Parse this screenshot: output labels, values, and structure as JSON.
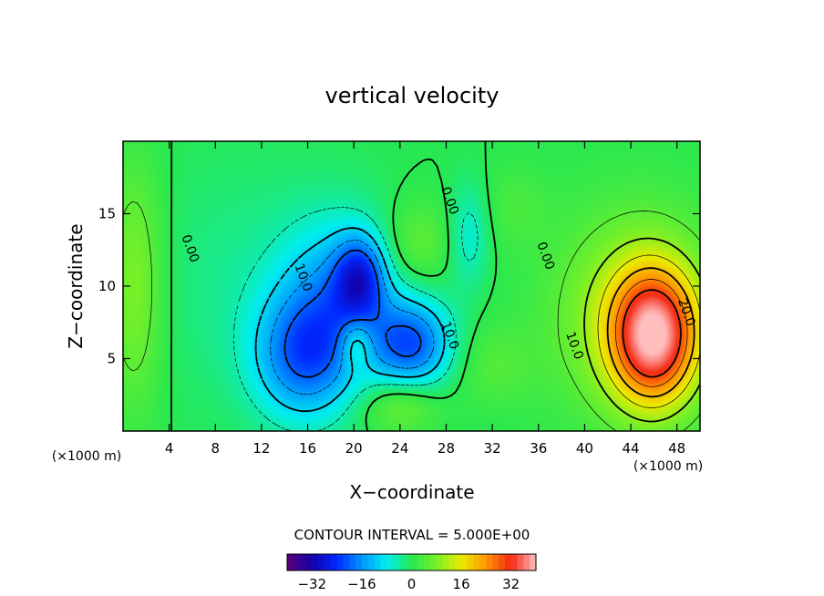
{
  "chart_data": {
    "type": "heatmap",
    "title": "vertical velocity",
    "xlabel": "X−coordinate",
    "ylabel": "Z−coordinate",
    "x_unit_left": "(×1000 m)",
    "x_unit_right": "(×1000 m)",
    "xlim": [
      0,
      50
    ],
    "ylim": [
      0,
      20
    ],
    "xticks": [
      4,
      8,
      12,
      16,
      20,
      24,
      28,
      32,
      36,
      40,
      44,
      48
    ],
    "xtick_labels": [
      "4",
      "8",
      "12",
      "16",
      "20",
      "24",
      "28",
      "32",
      "36",
      "40",
      "44",
      "48"
    ],
    "yticks": [
      5,
      10,
      15
    ],
    "ytick_labels": [
      "5",
      "10",
      "15"
    ],
    "contour_interval_text": "CONTOUR INTERVAL = 5.000E+00",
    "contour_labels": [
      {
        "text": "0.00",
        "x": 5.5,
        "y": 12.5
      },
      {
        "text": "10.0",
        "x": 15.3,
        "y": 10.5
      },
      {
        "text": "0.00",
        "x": 28.0,
        "y": 15.8
      },
      {
        "text": "0.00",
        "x": 36.3,
        "y": 12.0
      },
      {
        "text": "10.0",
        "x": 28.0,
        "y": 6.5
      },
      {
        "text": "10.0",
        "x": 38.8,
        "y": 5.8
      },
      {
        "text": "20.0",
        "x": 48.5,
        "y": 8.1
      }
    ],
    "colorbar": {
      "min": -40,
      "max": 40,
      "ticks": [
        -32,
        -16,
        0,
        16,
        32
      ],
      "tick_labels": [
        "−32",
        "−16",
        "0",
        "16",
        "32"
      ]
    },
    "features": [
      {
        "x": 46,
        "y": 6.5,
        "value": 32,
        "sx": 2.6,
        "sy": 3.2
      },
      {
        "x": 44.5,
        "y": 8,
        "value": 12,
        "sx": 5,
        "sy": 5
      },
      {
        "x": 25,
        "y": 6,
        "value": -20,
        "sx": 2.5,
        "sy": 2.2
      },
      {
        "x": 20.5,
        "y": 10.5,
        "value": -18,
        "sx": 1.5,
        "sy": 2
      },
      {
        "x": 15.5,
        "y": 5,
        "value": -16,
        "sx": 3,
        "sy": 3
      },
      {
        "x": 18.5,
        "y": 9,
        "value": -14,
        "sx": 3.5,
        "sy": 4
      },
      {
        "x": 25.5,
        "y": 13,
        "value": 6,
        "sx": 2,
        "sy": 2
      },
      {
        "x": 20.2,
        "y": 6,
        "value": 10,
        "sx": 1,
        "sy": 1.3
      },
      {
        "x": 24,
        "y": 1.8,
        "value": 8,
        "sx": 2.4,
        "sy": 1.4
      },
      {
        "x": 30,
        "y": 13.5,
        "value": -7,
        "sx": 1.2,
        "sy": 2.5
      },
      {
        "x": 32,
        "y": 4.5,
        "value": 4,
        "sx": 2.5,
        "sy": 2
      },
      {
        "x": 1,
        "y": 10,
        "value": 9,
        "sx": 1.8,
        "sy": 6
      },
      {
        "x": 34,
        "y": 15.5,
        "value": 3,
        "sx": 2,
        "sy": 2
      },
      {
        "x": 10,
        "y": 10,
        "value": -3,
        "sx": 6,
        "sy": 6
      }
    ]
  },
  "colors": {
    "background": "#ffffff",
    "axis": "#000000",
    "field_base": "#36e854",
    "positive_peak": "#ff3a1a",
    "negative_peak": "#1a6eff"
  }
}
